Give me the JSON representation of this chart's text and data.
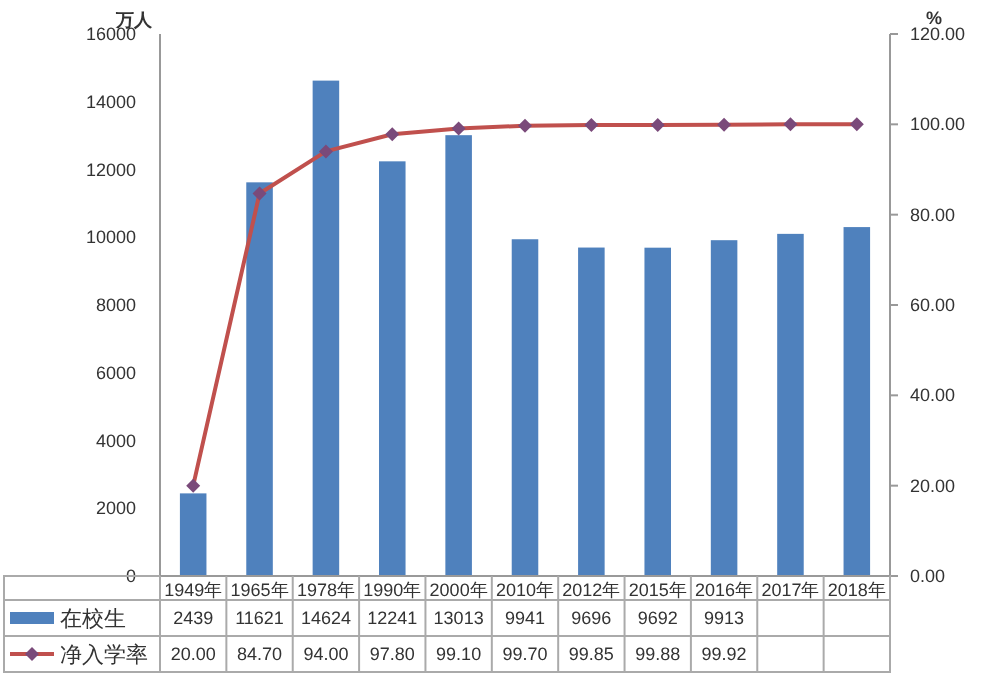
{
  "chart_data": {
    "type": "bar",
    "ylabel": "万人",
    "y2label": "%",
    "categories": [
      "1949年",
      "1965年",
      "1978年",
      "1990年",
      "2000年",
      "2010年",
      "2012年",
      "2015年",
      "2016年",
      "2017年",
      "2018年"
    ],
    "series": [
      {
        "name": "在校生",
        "color": "#4f81bd",
        "values": [
          2439,
          11621,
          14624,
          12241,
          13013,
          9941,
          9696,
          9692,
          9913,
          10100,
          10300
        ],
        "value_labels": [
          "2439",
          "11621",
          "14624",
          "12241",
          "13013",
          "9941",
          "9696",
          "9692",
          "9913",
          null,
          null
        ]
      },
      {
        "name": "净入学率",
        "type": "line",
        "axis": "y2",
        "color": "#c0504d",
        "marker": "diamond",
        "values": [
          20.0,
          84.7,
          94.0,
          97.8,
          99.1,
          99.7,
          99.85,
          99.88,
          99.92,
          100,
          100
        ],
        "value_labels": [
          "20.00",
          "84.70",
          "94.00",
          "97.80",
          "99.10",
          "99.70",
          "99.85",
          "99.88",
          "99.92",
          null,
          null
        ]
      }
    ],
    "ylim": [
      0,
      16000
    ],
    "yticks": [
      0,
      2000,
      4000,
      6000,
      8000,
      10000,
      12000,
      14000,
      16000
    ],
    "y2lim": [
      0,
      120
    ],
    "y2ticks": [
      {
        "value": 0,
        "label": "0.00"
      },
      {
        "value": 20,
        "label": "20.00"
      },
      {
        "value": 40,
        "label": "40.00"
      },
      {
        "value": 60,
        "label": "60.00"
      },
      {
        "value": 80,
        "label": "80.00"
      },
      {
        "value": 100,
        "label": "100.00"
      },
      {
        "value": 120,
        "label": "120.00"
      }
    ],
    "legend": "bottom",
    "grid": false
  }
}
